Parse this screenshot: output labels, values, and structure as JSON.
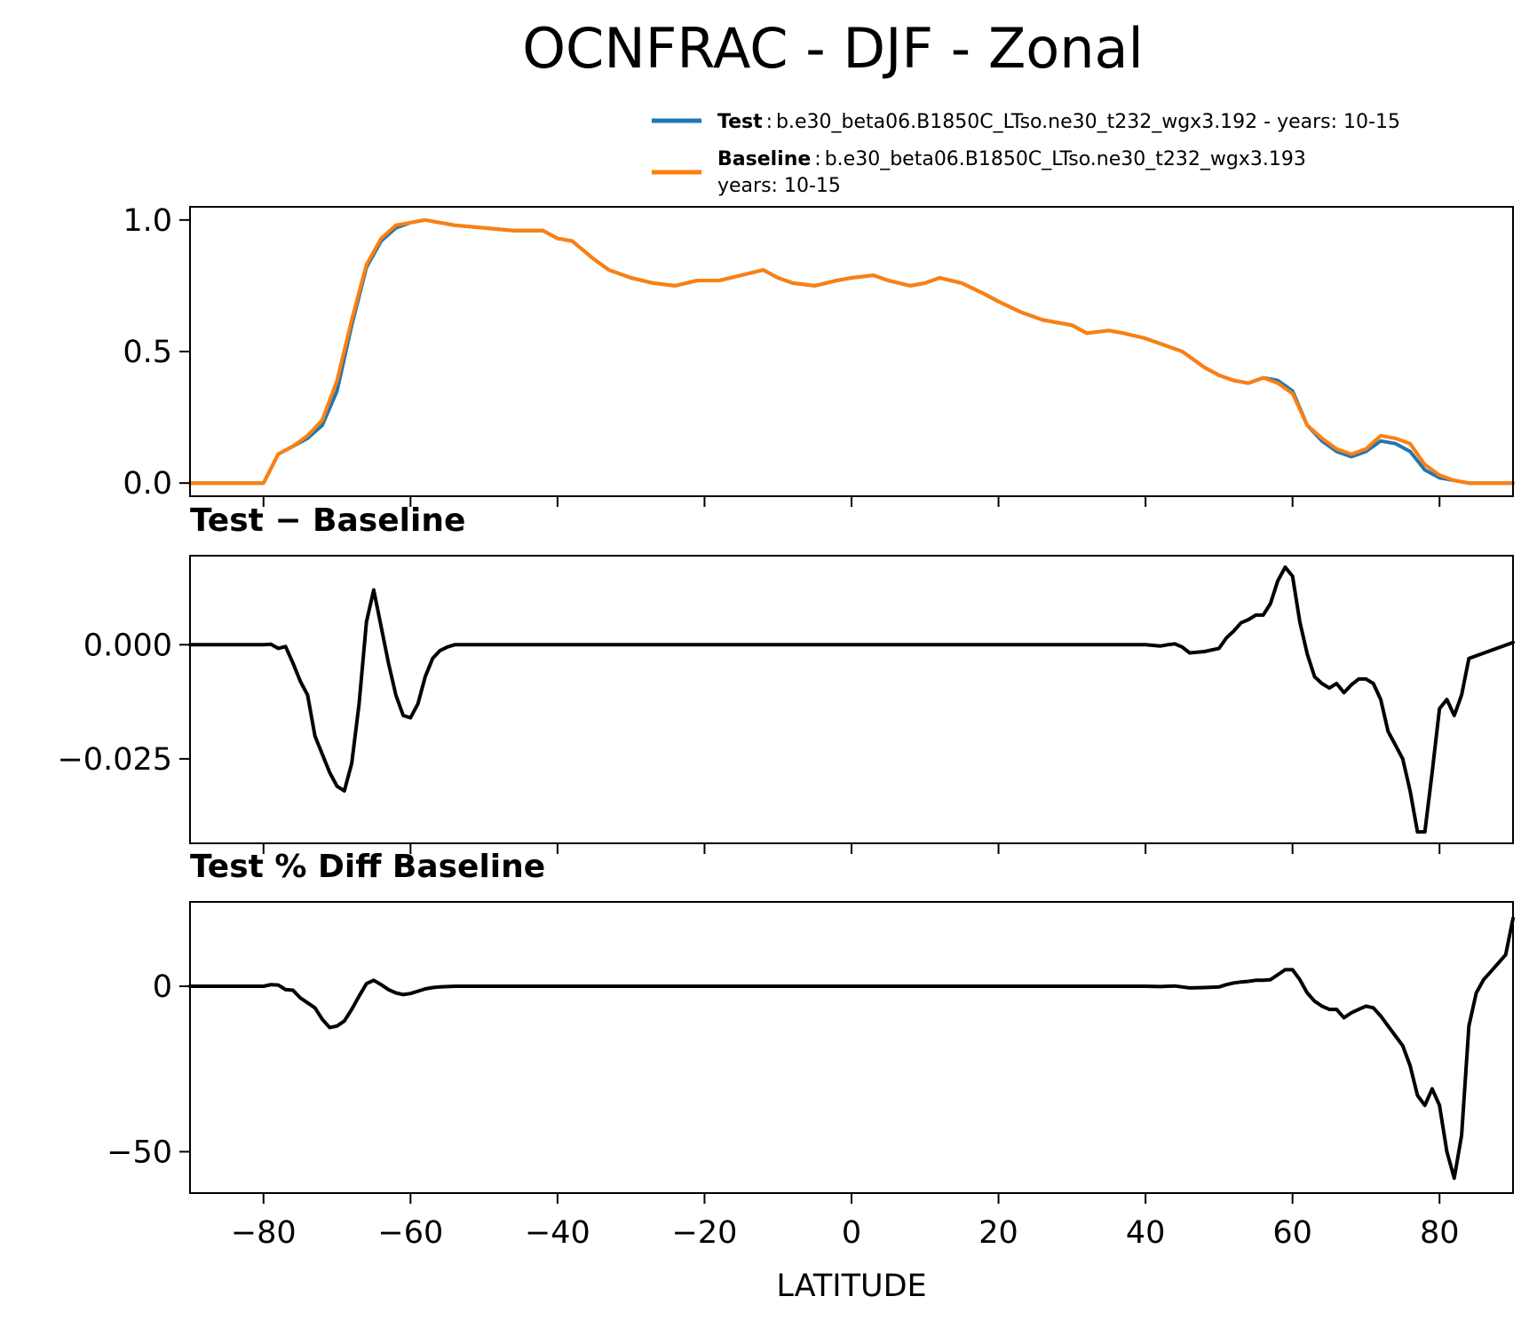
{
  "figure": {
    "title": "OCNFRAC - DJF - Zonal",
    "xlabel": "LATITUDE"
  },
  "legend": {
    "entries": [
      {
        "name": "Test",
        "separator": ":",
        "description": "b.e30_beta06.B1850C_LTso.ne30_t232_wgx3.192 - years: 10-15",
        "color": "#1f77b4"
      },
      {
        "name": "Baseline",
        "separator": ":",
        "description": "b.e30_beta06.B1850C_LTso.ne30_t232_wgx3.193",
        "description_line2": "years: 10-15",
        "color": "#ff7f0e"
      }
    ]
  },
  "chart_data": [
    {
      "type": "line",
      "title": "",
      "xlabel": "",
      "ylabel": "",
      "xlim": [
        -90,
        90
      ],
      "ylim": [
        -0.05,
        1.05
      ],
      "yticks": [
        0.0,
        0.5,
        1.0
      ],
      "ytick_labels": [
        "0.0",
        "0.5",
        "1.0"
      ],
      "xticks": [
        -80,
        -60,
        -40,
        -20,
        0,
        20,
        40,
        60,
        80
      ],
      "grid": false,
      "legend": "above-top-right",
      "series": [
        {
          "name": "Test",
          "color": "#1f77b4",
          "x": [
            -90,
            -80,
            -78,
            -76,
            -74,
            -72,
            -70,
            -68,
            -66,
            -64,
            -62,
            -60,
            -58,
            -56,
            -54,
            -50,
            -46,
            -42,
            -40,
            -38,
            -35,
            -33,
            -30,
            -27,
            -24,
            -21,
            -18,
            -15,
            -12,
            -10,
            -8,
            -5,
            -2,
            0,
            3,
            5,
            8,
            10,
            12,
            15,
            18,
            20,
            23,
            26,
            30,
            32,
            35,
            37,
            40,
            42,
            45,
            48,
            50,
            52,
            54,
            56,
            58,
            60,
            62,
            64,
            66,
            68,
            70,
            72,
            74,
            76,
            78,
            80,
            82,
            84,
            90
          ],
          "y": [
            0.0,
            0.0,
            0.11,
            0.14,
            0.17,
            0.22,
            0.35,
            0.6,
            0.82,
            0.92,
            0.97,
            0.99,
            1.0,
            0.99,
            0.98,
            0.97,
            0.96,
            0.96,
            0.93,
            0.92,
            0.85,
            0.81,
            0.78,
            0.76,
            0.75,
            0.77,
            0.77,
            0.79,
            0.81,
            0.78,
            0.76,
            0.75,
            0.77,
            0.78,
            0.79,
            0.77,
            0.75,
            0.76,
            0.78,
            0.76,
            0.72,
            0.69,
            0.65,
            0.62,
            0.6,
            0.57,
            0.58,
            0.57,
            0.55,
            0.53,
            0.5,
            0.44,
            0.41,
            0.39,
            0.38,
            0.4,
            0.39,
            0.35,
            0.22,
            0.16,
            0.12,
            0.1,
            0.12,
            0.16,
            0.15,
            0.12,
            0.05,
            0.02,
            0.01,
            0.0,
            0.0
          ]
        },
        {
          "name": "Baseline",
          "color": "#ff7f0e",
          "x": [
            -90,
            -80,
            -78,
            -76,
            -74,
            -72,
            -70,
            -68,
            -66,
            -64,
            -62,
            -60,
            -58,
            -56,
            -54,
            -50,
            -46,
            -42,
            -40,
            -38,
            -35,
            -33,
            -30,
            -27,
            -24,
            -21,
            -18,
            -15,
            -12,
            -10,
            -8,
            -5,
            -2,
            0,
            3,
            5,
            8,
            10,
            12,
            15,
            18,
            20,
            23,
            26,
            30,
            32,
            35,
            37,
            40,
            42,
            45,
            48,
            50,
            52,
            54,
            56,
            58,
            60,
            62,
            64,
            66,
            68,
            70,
            72,
            74,
            76,
            78,
            80,
            82,
            84,
            90
          ],
          "y": [
            0.0,
            0.0,
            0.11,
            0.14,
            0.18,
            0.24,
            0.39,
            0.62,
            0.83,
            0.93,
            0.98,
            0.99,
            1.0,
            0.99,
            0.98,
            0.97,
            0.96,
            0.96,
            0.93,
            0.92,
            0.85,
            0.81,
            0.78,
            0.76,
            0.75,
            0.77,
            0.77,
            0.79,
            0.81,
            0.78,
            0.76,
            0.75,
            0.77,
            0.78,
            0.79,
            0.77,
            0.75,
            0.76,
            0.78,
            0.76,
            0.72,
            0.69,
            0.65,
            0.62,
            0.6,
            0.57,
            0.58,
            0.57,
            0.55,
            0.53,
            0.5,
            0.44,
            0.41,
            0.39,
            0.38,
            0.4,
            0.38,
            0.34,
            0.22,
            0.17,
            0.13,
            0.11,
            0.13,
            0.18,
            0.17,
            0.15,
            0.07,
            0.03,
            0.01,
            0.0,
            0.0
          ]
        }
      ]
    },
    {
      "type": "line",
      "title": "Test − Baseline",
      "xlabel": "",
      "ylabel": "",
      "xlim": [
        -90,
        90
      ],
      "ylim": [
        -0.0435,
        0.0195
      ],
      "yticks": [
        0.0,
        -0.025
      ],
      "ytick_labels": [
        "0.000",
        "−0.025"
      ],
      "xticks": [
        -80,
        -60,
        -40,
        -20,
        0,
        20,
        40,
        60,
        80
      ],
      "grid": false,
      "series": [
        {
          "name": "",
          "color": "#000000",
          "x": [
            -90,
            -80,
            -79,
            -78,
            -77,
            -76,
            -75,
            -74,
            -73,
            -72,
            -71,
            -70,
            -69,
            -68,
            -67,
            -66,
            -65,
            -64,
            -63,
            -62,
            -61,
            -60,
            -59,
            -58,
            -57,
            -56,
            -55,
            -54,
            -50,
            -40,
            -30,
            -20,
            -10,
            0,
            10,
            20,
            30,
            38,
            40,
            42,
            43,
            44,
            45,
            46,
            48,
            50,
            51,
            52,
            53,
            54,
            55,
            56,
            57,
            58,
            59,
            60,
            61,
            62,
            63,
            64,
            65,
            66,
            67,
            68,
            69,
            70,
            71,
            72,
            73,
            74,
            75,
            76,
            77,
            78,
            79,
            80,
            81,
            82,
            83,
            84,
            90
          ],
          "y": [
            0.0,
            0.0,
            0.0001,
            -0.0008,
            -0.0004,
            -0.004,
            -0.008,
            -0.011,
            -0.02,
            -0.024,
            -0.028,
            -0.031,
            -0.032,
            -0.026,
            -0.013,
            0.005,
            0.012,
            0.004,
            -0.004,
            -0.011,
            -0.0155,
            -0.016,
            -0.013,
            -0.007,
            -0.003,
            -0.0013,
            -0.0005,
            0.0,
            0.0,
            0.0,
            0.0,
            0.0,
            0.0,
            0.0,
            0.0,
            0.0,
            0.0,
            0.0,
            0.0,
            -0.0003,
            0.0,
            0.0002,
            -0.0005,
            -0.0018,
            -0.0015,
            -0.0008,
            0.0015,
            0.003,
            0.0048,
            0.0055,
            0.0065,
            0.0065,
            0.009,
            0.014,
            0.017,
            0.015,
            0.005,
            -0.002,
            -0.007,
            -0.0085,
            -0.0095,
            -0.0085,
            -0.0105,
            -0.0088,
            -0.0075,
            -0.0075,
            -0.0085,
            -0.012,
            -0.019,
            -0.022,
            -0.025,
            -0.032,
            -0.041,
            -0.041,
            -0.028,
            -0.014,
            -0.012,
            -0.0155,
            -0.011,
            -0.003,
            0.0005
          ]
        }
      ]
    },
    {
      "type": "line",
      "title": "Test % Diff Baseline",
      "xlabel": "LATITUDE",
      "ylabel": "",
      "xlim": [
        -90,
        90
      ],
      "ylim": [
        -62.5,
        25.5
      ],
      "yticks": [
        0,
        -50
      ],
      "ytick_labels": [
        "0",
        "−50"
      ],
      "xticks": [
        -80,
        -60,
        -40,
        -20,
        0,
        20,
        40,
        60,
        80
      ],
      "xtick_labels": [
        "−80",
        "−60",
        "−40",
        "−20",
        "0",
        "20",
        "40",
        "60",
        "80"
      ],
      "grid": false,
      "series": [
        {
          "name": "",
          "color": "#000000",
          "x": [
            -90,
            -80,
            -79,
            -78,
            -77,
            -76,
            -75,
            -74,
            -73,
            -72,
            -71,
            -70,
            -69,
            -68,
            -67,
            -66,
            -65,
            -64,
            -63,
            -62,
            -61,
            -60,
            -59,
            -58,
            -57,
            -56,
            -55,
            -54,
            -50,
            -40,
            -30,
            -20,
            -10,
            0,
            10,
            20,
            30,
            38,
            40,
            42,
            43,
            44,
            45,
            46,
            48,
            50,
            51,
            52,
            53,
            54,
            55,
            56,
            57,
            58,
            59,
            60,
            61,
            62,
            63,
            64,
            65,
            66,
            67,
            68,
            69,
            70,
            71,
            72,
            73,
            74,
            75,
            76,
            77,
            78,
            79,
            80,
            81,
            82,
            83,
            84,
            85,
            86,
            87,
            88,
            89,
            90
          ],
          "y": [
            0.0,
            0.0,
            0.5,
            0.4,
            -1.0,
            -1.2,
            -3.5,
            -5.0,
            -6.5,
            -10.0,
            -12.5,
            -12.0,
            -10.5,
            -7.0,
            -3.0,
            0.8,
            1.8,
            0.5,
            -1.0,
            -2.0,
            -2.5,
            -2.2,
            -1.5,
            -0.8,
            -0.4,
            -0.2,
            -0.1,
            0.0,
            0.0,
            0.0,
            0.0,
            0.0,
            0.0,
            0.0,
            0.0,
            0.0,
            0.0,
            0.0,
            0.0,
            -0.1,
            0.0,
            0.1,
            -0.2,
            -0.5,
            -0.4,
            -0.2,
            0.5,
            1.0,
            1.3,
            1.5,
            1.8,
            1.8,
            2.0,
            3.5,
            5.0,
            5.0,
            2.0,
            -2.0,
            -4.5,
            -6.0,
            -7.0,
            -7.0,
            -9.5,
            -8.0,
            -7.0,
            -6.0,
            -6.5,
            -9.0,
            -12.0,
            -15.0,
            -18.0,
            -24.0,
            -33.0,
            -36.0,
            -31.0,
            -36.0,
            -50.0,
            -58.0,
            -45.0,
            -12.0,
            -2.0,
            2.0,
            4.5,
            7.0,
            9.5,
            20.5
          ]
        }
      ]
    }
  ]
}
